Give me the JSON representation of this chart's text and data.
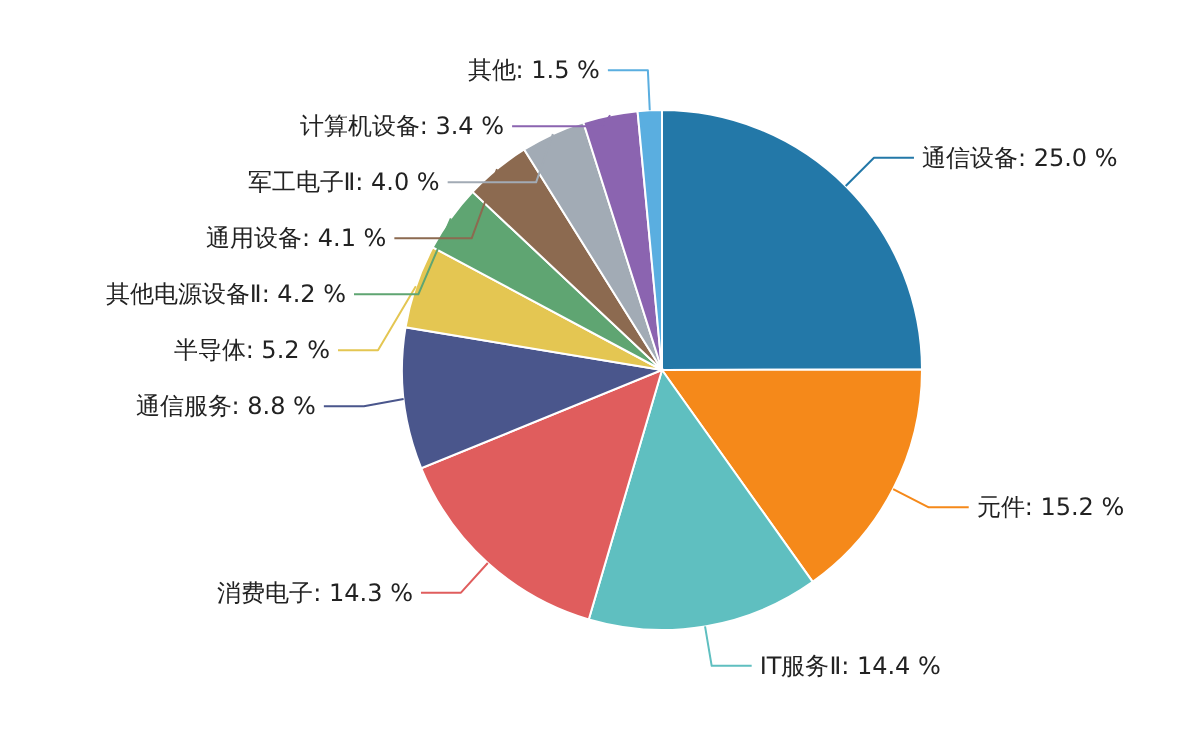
{
  "chart_data": {
    "type": "pie",
    "categories": [
      "通信设备",
      "元件",
      "IT服务Ⅱ",
      "消费电子",
      "通信服务",
      "半导体",
      "其他电源设备Ⅱ",
      "通用设备",
      "军工电子Ⅱ",
      "计算机设备",
      "其他"
    ],
    "values": [
      25.0,
      15.2,
      14.4,
      14.3,
      8.8,
      5.2,
      4.2,
      4.1,
      4.0,
      3.4,
      1.5
    ],
    "value_labels": [
      "25.0 %",
      "15.2 %",
      "14.4 %",
      "14.3 %",
      "8.8 %",
      "5.2 %",
      "4.2 %",
      "4.1 %",
      "4.0 %",
      "3.4 %",
      "1.5 %"
    ],
    "colors": [
      "#2378a8",
      "#f5891a",
      "#5fbfc0",
      "#e05d5d",
      "#4a568c",
      "#e4c652",
      "#5fa572",
      "#8c6a50",
      "#a2abb5",
      "#8b64b0",
      "#5aaee0"
    ]
  }
}
